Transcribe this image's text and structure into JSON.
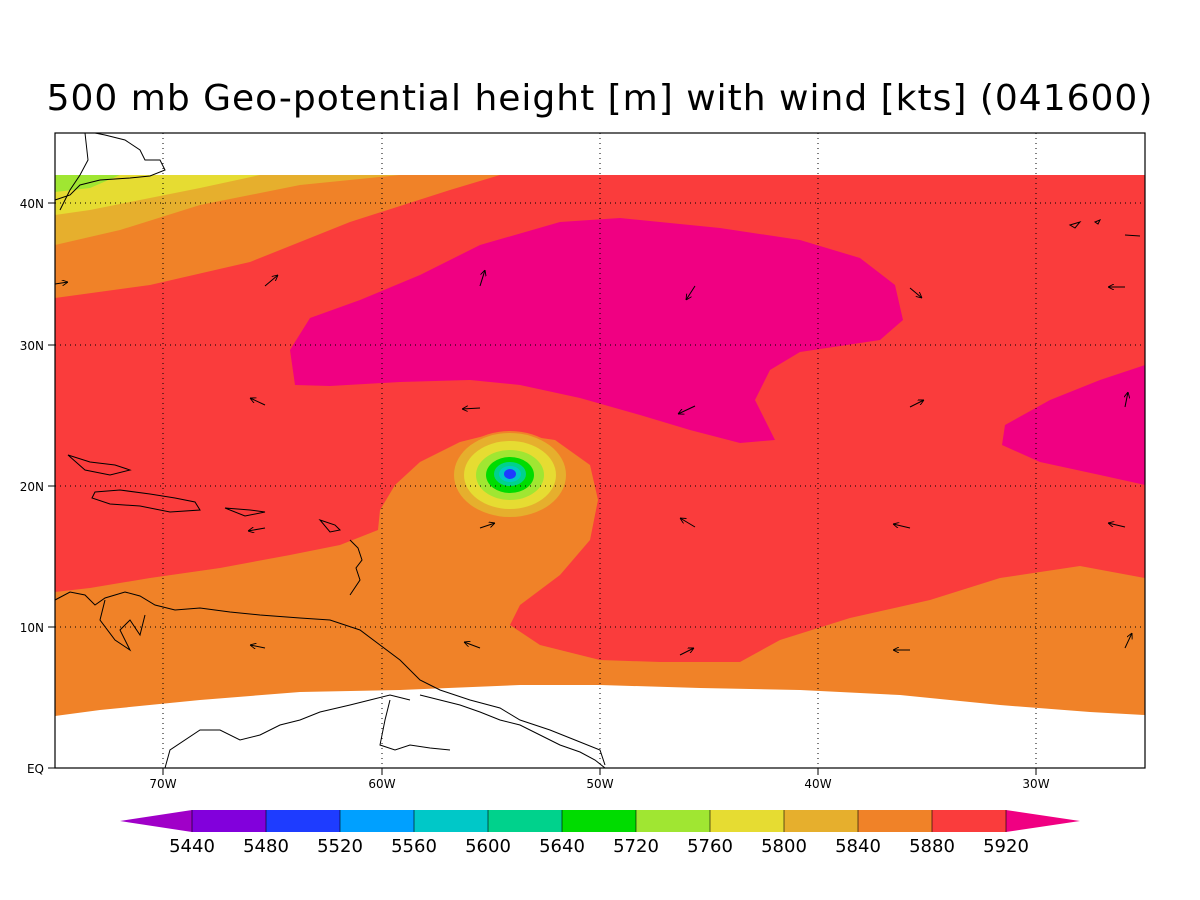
{
  "title": "500 mb Geo-potential height [m] with wind [kts] (041600)",
  "axes": {
    "lon_labels": [
      "70W",
      "60W",
      "50W",
      "40W",
      "30W"
    ],
    "lat_labels": [
      "40N",
      "30N",
      "20N",
      "10N",
      "EQ"
    ]
  },
  "colorbar": {
    "labels": [
      "5440",
      "5480",
      "5520",
      "5560",
      "5600",
      "5640",
      "5720",
      "5760",
      "5800",
      "5840",
      "5880",
      "5920"
    ],
    "colors": [
      "#a000c8",
      "#8200dc",
      "#1e3cff",
      "#00a0ff",
      "#00c8c8",
      "#00d28c",
      "#00dc00",
      "#a0e632",
      "#e6dc32",
      "#e6af2d",
      "#f08228",
      "#fa3c3c",
      "#f00082"
    ]
  },
  "fill_colors": {
    "h5800": "#e6dc32",
    "h5840": "#e6af2d",
    "h5880": "#f08228",
    "h5920": "#fa3c3c",
    "h5960": "#f00082",
    "h5760": "#a0e632",
    "h5720": "#00dc00",
    "h5640": "#00d28c",
    "h5600": "#00c8c8",
    "h5560": "#00a0ff",
    "h5520": "#1e3cff"
  }
}
